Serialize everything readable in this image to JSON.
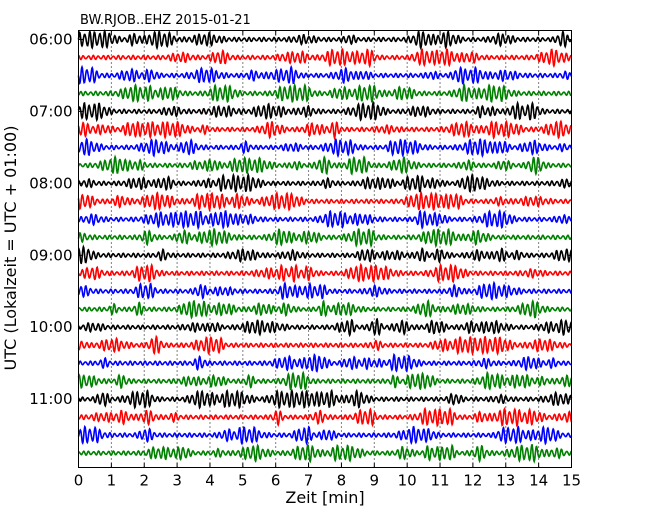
{
  "chart_data": {
    "type": "line",
    "title": "BW.RJOB..EHZ 2015-01-21",
    "xlabel": "Zeit  [min]",
    "ylabel": "UTC (Lokalzeit = UTC + 01:00)",
    "xlim": [
      0,
      15
    ],
    "x_ticks": [
      0,
      1,
      2,
      3,
      4,
      5,
      6,
      7,
      8,
      9,
      10,
      11,
      12,
      13,
      14,
      15
    ],
    "y_tick_labels": [
      "06:00",
      "07:00",
      "08:00",
      "09:00",
      "10:00",
      "11:00"
    ],
    "trace_start_times": [
      "06:00",
      "06:15",
      "06:30",
      "06:45",
      "07:00",
      "07:15",
      "07:30",
      "07:45",
      "08:00",
      "08:15",
      "08:30",
      "08:45",
      "09:00",
      "09:15",
      "09:30",
      "09:45",
      "10:00",
      "10:15",
      "10:30",
      "10:45",
      "11:00",
      "11:15",
      "11:30",
      "11:45"
    ],
    "trace_minutes": 15,
    "grid": true,
    "series_colors": [
      "#000000",
      "#ff0000",
      "#0000ff",
      "#008000"
    ]
  }
}
